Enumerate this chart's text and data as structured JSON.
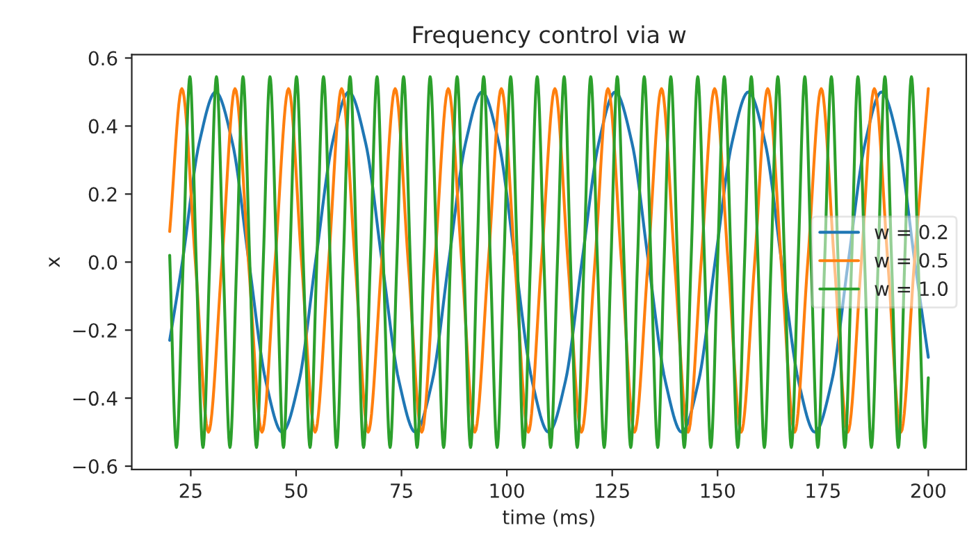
{
  "chart_data": {
    "type": "line",
    "title": "Frequency control via w",
    "xlabel": "time (ms)",
    "ylabel": "x",
    "xlim": [
      11,
      209
    ],
    "xticks": [
      25,
      50,
      75,
      100,
      125,
      150,
      175,
      200
    ],
    "ylim": [
      -0.61,
      0.61
    ],
    "yticks": [
      {
        "value": -0.6,
        "label": "−0.6"
      },
      {
        "value": -0.4,
        "label": "−0.4"
      },
      {
        "value": -0.2,
        "label": "−0.2"
      },
      {
        "value": 0.0,
        "label": "0.0"
      },
      {
        "value": 0.2,
        "label": "0.2"
      },
      {
        "value": 0.4,
        "label": "0.4"
      },
      {
        "value": 0.6,
        "label": "0.6"
      }
    ],
    "grid": false,
    "legend": "right",
    "marker": "none",
    "line_style": "solid",
    "series": [
      {
        "name": "w = 0.2",
        "color": "#1f77b4",
        "x": [
          20.0,
          23.0,
          27.0,
          30.9,
          34.9,
          38.8,
          42.8,
          46.7,
          50.7,
          54.6,
          58.6,
          62.5,
          66.5,
          70.4,
          74.4,
          78.3,
          82.3,
          86.2,
          90.2,
          94.1,
          98.1,
          102.0,
          106.0,
          109.9,
          113.9,
          117.8,
          121.8,
          125.7,
          129.7,
          133.6,
          137.6,
          141.5,
          145.5,
          149.4,
          153.4,
          157.3,
          161.3,
          165.2,
          169.2,
          173.1,
          177.1,
          181.0,
          185.0,
          188.9,
          192.9,
          196.8,
          200.0
        ],
        "values": [
          -0.23,
          0,
          0.35,
          0.5,
          0.35,
          0,
          -0.35,
          -0.5,
          -0.35,
          0,
          0.35,
          0.5,
          0.35,
          0,
          -0.35,
          -0.5,
          -0.35,
          0,
          0.35,
          0.5,
          0.35,
          0,
          -0.35,
          -0.5,
          -0.35,
          0,
          0.35,
          0.5,
          0.35,
          0,
          -0.35,
          -0.5,
          -0.35,
          0,
          0.35,
          0.5,
          0.35,
          0,
          -0.35,
          -0.5,
          -0.35,
          0,
          0.35,
          0.5,
          0.35,
          0,
          -0.28
        ]
      },
      {
        "name": "w = 0.5",
        "color": "#ff7f0e",
        "x": [
          20.0,
          22.9,
          26.1,
          29.2,
          32.4,
          35.5,
          38.7,
          41.9,
          45.0,
          48.2,
          51.3,
          54.5,
          57.7,
          60.8,
          64.0,
          67.1,
          70.3,
          73.5,
          76.6,
          79.8,
          82.9,
          86.1,
          89.3,
          92.4,
          95.6,
          98.7,
          101.9,
          105.1,
          108.2,
          111.4,
          114.5,
          117.7,
          120.9,
          124.0,
          127.2,
          130.3,
          133.5,
          136.7,
          139.8,
          143.0,
          146.1,
          149.3,
          152.5,
          155.6,
          158.8,
          161.9,
          165.1,
          168.3,
          171.4,
          174.6,
          177.7,
          180.9,
          184.1,
          187.2,
          190.4,
          193.5,
          196.7,
          200.0
        ],
        "values": [
          0.09,
          0.51,
          0,
          -0.5,
          0,
          0.51,
          0,
          -0.5,
          0,
          0.51,
          0,
          -0.5,
          0,
          0.51,
          0,
          -0.5,
          0,
          0.51,
          0,
          -0.5,
          0,
          0.51,
          0,
          -0.5,
          0,
          0.51,
          0,
          -0.5,
          0,
          0.51,
          0,
          -0.5,
          0,
          0.51,
          0,
          -0.5,
          0,
          0.51,
          0,
          -0.5,
          0,
          0.51,
          0,
          -0.5,
          0,
          0.51,
          0,
          -0.5,
          0,
          0.51,
          0,
          -0.5,
          0,
          0.51,
          0,
          -0.5,
          0,
          0.51
        ]
      },
      {
        "name": "w = 1.0",
        "color": "#2ca02c",
        "x": [
          20.0,
          21.6,
          23.2,
          24.8,
          26.3,
          27.9,
          29.5,
          31.1,
          32.7,
          34.3,
          35.9,
          37.4,
          39.0,
          40.6,
          42.2,
          43.8,
          45.4,
          47.0,
          48.5,
          50.1,
          51.7,
          53.3,
          54.9,
          56.5,
          58.1,
          59.6,
          61.2,
          62.8,
          64.4,
          66.0,
          67.6,
          69.2,
          70.7,
          72.3,
          73.9,
          75.5,
          77.1,
          78.7,
          80.3,
          81.8,
          83.4,
          85.0,
          86.6,
          88.2,
          89.8,
          91.4,
          92.9,
          94.5,
          96.1,
          97.7,
          99.3,
          100.9,
          102.5,
          104.0,
          105.6,
          107.2,
          108.8,
          110.4,
          112.0,
          113.6,
          115.1,
          116.7,
          118.3,
          119.9,
          121.5,
          123.1,
          124.7,
          126.2,
          127.8,
          129.4,
          131.0,
          132.6,
          134.2,
          135.8,
          137.3,
          138.9,
          140.5,
          142.1,
          143.7,
          145.3,
          146.9,
          148.4,
          150.0,
          151.6,
          153.2,
          154.8,
          156.4,
          158.0,
          159.6,
          161.1,
          162.7,
          164.3,
          165.9,
          167.5,
          169.1,
          170.7,
          172.2,
          173.8,
          175.4,
          177.0,
          178.6,
          180.2,
          181.8,
          183.3,
          184.9,
          186.5,
          188.1,
          189.7,
          191.3,
          192.9,
          194.4,
          196.0,
          197.6,
          199.2,
          200.0
        ],
        "values": [
          0.02,
          -0.545,
          0,
          0.545,
          0,
          -0.545,
          0,
          0.545,
          0,
          -0.545,
          0,
          0.545,
          0,
          -0.545,
          0,
          0.545,
          0,
          -0.545,
          0,
          0.545,
          0,
          -0.545,
          0,
          0.545,
          0,
          -0.545,
          0,
          0.545,
          0,
          -0.545,
          0,
          0.545,
          0,
          -0.545,
          0,
          0.545,
          0,
          -0.545,
          0,
          0.545,
          0,
          -0.545,
          0,
          0.545,
          0,
          -0.545,
          0,
          0.545,
          0,
          -0.545,
          0,
          0.545,
          0,
          -0.545,
          0,
          0.545,
          0,
          -0.545,
          0,
          0.545,
          0,
          -0.545,
          0,
          0.545,
          0,
          -0.545,
          0,
          0.545,
          0,
          -0.545,
          0,
          0.545,
          0,
          -0.545,
          0,
          0.545,
          0,
          -0.545,
          0,
          0.545,
          0,
          -0.545,
          0,
          0.545,
          0,
          -0.545,
          0,
          0.545,
          0,
          -0.545,
          0,
          0.545,
          0,
          -0.545,
          0,
          0.545,
          0,
          -0.545,
          0,
          0.545,
          0,
          -0.545,
          0,
          0.545,
          0,
          -0.545,
          0,
          0.545,
          0,
          -0.545,
          0,
          0.545,
          0,
          -0.545,
          -0.34
        ]
      }
    ]
  }
}
